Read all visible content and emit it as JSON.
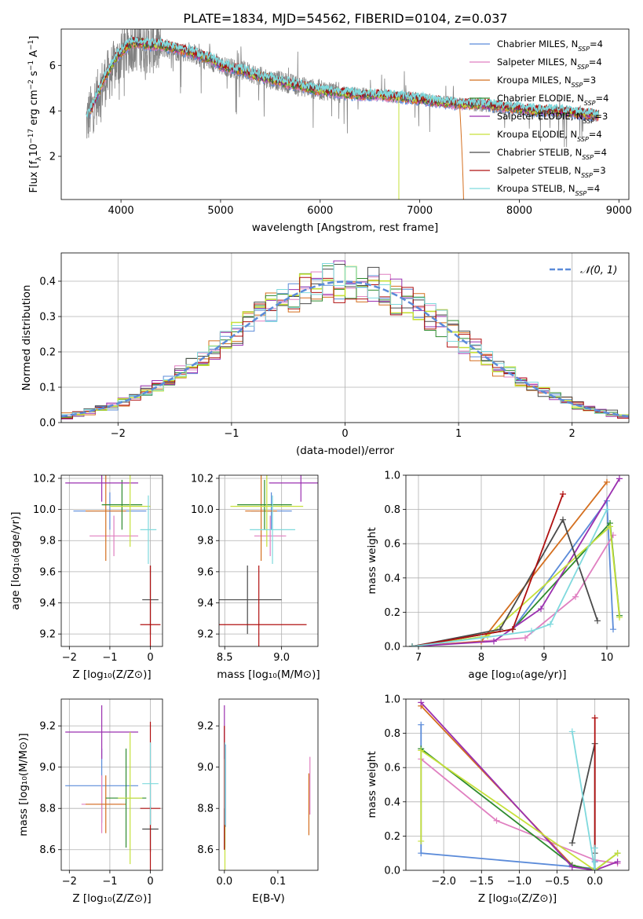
{
  "figure": {
    "title": "PLATE=1834, MJD=54562, FIBERID=0104, z=0.037"
  },
  "colors": [
    "#5b8bd9",
    "#e07fc0",
    "#d46f1f",
    "#2e8b2e",
    "#9b30b0",
    "#c6e03a",
    "#4a4a4a",
    "#b01010",
    "#7fd9dd"
  ],
  "legend": [
    {
      "base": "Chabrier MILES, N",
      "sub": "SSP",
      "tail": "=4"
    },
    {
      "base": "Salpeter MILES, N",
      "sub": "SSP",
      "tail": "=4"
    },
    {
      "base": "Kroupa MILES, N",
      "sub": "SSP",
      "tail": "=3"
    },
    {
      "base": "Chabrier ELODIE, N",
      "sub": "SSP",
      "tail": "=4"
    },
    {
      "base": "Salpeter ELODIE, N",
      "sub": "SSP",
      "tail": "=3"
    },
    {
      "base": "Kroupa ELODIE, N",
      "sub": "SSP",
      "tail": "=4"
    },
    {
      "base": "Chabrier STELIB, N",
      "sub": "SSP",
      "tail": "=4"
    },
    {
      "base": "Salpeter STELIB, N",
      "sub": "SSP",
      "tail": "=3"
    },
    {
      "base": "Kroupa STELIB, N",
      "sub": "SSP",
      "tail": "=4"
    }
  ],
  "chart_data": [
    {
      "id": "spectrum",
      "type": "line",
      "xlabel": "wavelength [Angstrom, rest frame]",
      "ylabel_parts": [
        "Flux [f",
        "λ",
        "10",
        "−17",
        " erg cm",
        "−2",
        " s",
        "−1",
        " A",
        "−1",
        "]"
      ],
      "xlim": [
        3400,
        9100
      ],
      "ylim": [
        0.1,
        7.6
      ],
      "xticks": [
        4000,
        5000,
        6000,
        7000,
        8000,
        9000
      ],
      "yticks": [
        2,
        4,
        6
      ],
      "grid": false,
      "legend_position": "top-right",
      "data_color": "#808080",
      "data_x": [
        3650,
        3700,
        3760,
        3820,
        3880,
        3940,
        4000,
        4100,
        4200,
        4300,
        4400,
        4500,
        4600,
        4700,
        4800,
        4900,
        5000,
        5100,
        5200,
        5300,
        5400,
        5500,
        5600,
        5700,
        5800,
        5900,
        6000,
        6100,
        6200,
        6300,
        6400,
        6500,
        6600,
        6700,
        6800,
        6900,
        7000,
        7100,
        7200,
        7300,
        7400,
        7500,
        7600,
        7700,
        7800,
        7900,
        8000,
        8100,
        8200,
        8300,
        8400,
        8500,
        8600,
        8700,
        8800
      ],
      "data_y": [
        3.5,
        4.0,
        4.6,
        5.2,
        5.6,
        6.0,
        6.4,
        6.9,
        6.9,
        6.8,
        6.8,
        6.7,
        6.6,
        6.6,
        6.3,
        6.2,
        6.0,
        5.9,
        5.8,
        5.7,
        5.5,
        5.4,
        5.3,
        5.2,
        5.1,
        5.0,
        4.9,
        4.9,
        4.8,
        4.8,
        4.8,
        4.7,
        4.7,
        4.6,
        4.6,
        4.6,
        4.5,
        4.5,
        4.4,
        4.4,
        4.3,
        4.3,
        4.2,
        4.2,
        4.1,
        4.1,
        4.1,
        4.0,
        4.0,
        4.0,
        3.9,
        3.9,
        3.9,
        3.8,
        3.8
      ],
      "model_x": [
        3650,
        3700,
        3760,
        3820,
        3880,
        3940,
        4000,
        4100,
        4200,
        4300,
        4400,
        4500,
        4600,
        4700,
        4800,
        4900,
        5000,
        5200,
        5400,
        5600,
        5800,
        6000,
        6200,
        6400,
        6600,
        6800,
        7000,
        7200,
        7400,
        7600,
        7800,
        8000,
        8200,
        8400,
        8600,
        8800
      ],
      "model_y": [
        3.6,
        4.1,
        4.7,
        5.3,
        5.8,
        6.3,
        6.6,
        7.0,
        7.0,
        6.9,
        6.9,
        6.8,
        6.7,
        6.6,
        6.4,
        6.3,
        6.0,
        5.8,
        5.5,
        5.3,
        5.1,
        4.9,
        4.8,
        4.7,
        4.7,
        4.6,
        4.5,
        4.4,
        4.3,
        4.3,
        4.2,
        4.1,
        4.0,
        4.0,
        3.9,
        3.8
      ]
    },
    {
      "id": "residuals",
      "type": "histogram",
      "xlabel": "(data-model)/error",
      "ylabel": "Normed distribution",
      "xlim": [
        -2.5,
        2.5
      ],
      "ylim": [
        0,
        0.48
      ],
      "xticks": [
        -2,
        -1,
        0,
        1,
        2
      ],
      "yticks": [
        0.0,
        0.1,
        0.2,
        0.3,
        0.4
      ],
      "grid": true,
      "legend_position": "top-right",
      "gaussian_label": "𝒩(0, 1)",
      "gaussian_color": "#5b8bd9",
      "bin_width": 0.1
    },
    {
      "id": "age-vs-Z",
      "type": "errorbar",
      "xlabel": "Z [log₁₀(Z/Z⊙)]",
      "ylabel": "age  [log₁₀(age/yr)]",
      "xlim": [
        -2.2,
        0.3
      ],
      "ylim": [
        9.12,
        10.22
      ],
      "xticks": [
        -2,
        -1,
        0
      ],
      "yticks": [
        9.2,
        9.4,
        9.6,
        9.8,
        10.0,
        10.2
      ],
      "grid": true,
      "series": [
        {
          "x": -1.0,
          "xerr": 0.9,
          "y": 9.99,
          "yerr": 0.12
        },
        {
          "x": -0.9,
          "xerr": 0.6,
          "y": 9.83,
          "yerr": 0.13
        },
        {
          "x": -1.1,
          "xerr": 0.5,
          "y": 9.99,
          "yerr": 0.32
        },
        {
          "x": -0.7,
          "xerr": 0.5,
          "y": 10.03,
          "yerr": 0.16
        },
        {
          "x": -1.2,
          "xerr": 0.9,
          "y": 10.17,
          "yerr": 0.12
        },
        {
          "x": -0.5,
          "xerr": 0.5,
          "y": 10.02,
          "yerr": 0.26
        },
        {
          "x": 0.0,
          "xerr": 0.2,
          "y": 9.42,
          "yerr": 0.22
        },
        {
          "x": 0.0,
          "xerr": 0.25,
          "y": 9.26,
          "yerr": 0.38
        },
        {
          "x": -0.05,
          "xerr": 0.2,
          "y": 9.87,
          "yerr": 0.22
        }
      ]
    },
    {
      "id": "age-vs-mass",
      "type": "errorbar",
      "xlabel": "mass [log₁₀(M/M⊙)]",
      "ylabel": "",
      "xlim": [
        8.45,
        9.32
      ],
      "ylim": [
        9.12,
        10.22
      ],
      "xticks": [
        8.5,
        9.0
      ],
      "yticks": [
        9.2,
        9.4,
        9.6,
        9.8,
        10.0,
        10.2
      ],
      "grid": true,
      "series": [
        {
          "x": 8.91,
          "xerr": 0.18,
          "y": 9.99,
          "yerr": 0.12
        },
        {
          "x": 8.9,
          "xerr": 0.14,
          "y": 9.83,
          "yerr": 0.13
        },
        {
          "x": 8.82,
          "xerr": 0.14,
          "y": 9.99,
          "yerr": 0.32
        },
        {
          "x": 8.85,
          "xerr": 0.24,
          "y": 10.03,
          "yerr": 0.16
        },
        {
          "x": 9.17,
          "xerr": 0.28,
          "y": 10.17,
          "yerr": 0.12
        },
        {
          "x": 8.87,
          "xerr": 0.32,
          "y": 10.02,
          "yerr": 0.26
        },
        {
          "x": 8.7,
          "xerr": 0.3,
          "y": 9.42,
          "yerr": 0.22
        },
        {
          "x": 8.8,
          "xerr": 0.42,
          "y": 9.26,
          "yerr": 0.38
        },
        {
          "x": 8.92,
          "xerr": 0.2,
          "y": 9.87,
          "yerr": 0.22
        }
      ]
    },
    {
      "id": "massweight-vs-age",
      "type": "line",
      "xlabel": "age  [log₁₀(age/yr)]",
      "ylabel": "mass weight",
      "xlim": [
        6.8,
        10.35
      ],
      "ylim": [
        0,
        1.0
      ],
      "xticks": [
        7,
        8,
        9,
        10
      ],
      "yticks": [
        0.0,
        0.2,
        0.4,
        0.6,
        0.8,
        1.0
      ],
      "grid": true,
      "series": [
        {
          "x": [
            6.9,
            8.5,
            10.0,
            10.1
          ],
          "y": [
            0.0,
            0.1,
            0.85,
            0.1
          ]
        },
        {
          "x": [
            6.9,
            8.7,
            9.5,
            10.1
          ],
          "y": [
            0.0,
            0.05,
            0.29,
            0.65
          ]
        },
        {
          "x": [
            6.9,
            8.0,
            10.0
          ],
          "y": [
            0.0,
            0.03,
            0.96
          ]
        },
        {
          "x": [
            6.9,
            8.5,
            10.05,
            10.2
          ],
          "y": [
            0.0,
            0.1,
            0.72,
            0.18
          ]
        },
        {
          "x": [
            6.9,
            8.2,
            8.95,
            10.2
          ],
          "y": [
            0.0,
            0.03,
            0.22,
            0.98
          ]
        },
        {
          "x": [
            6.9,
            8.1,
            10.05,
            10.2
          ],
          "y": [
            0.0,
            0.06,
            0.7,
            0.17
          ]
        },
        {
          "x": [
            6.9,
            8.3,
            9.3,
            9.85
          ],
          "y": [
            0.0,
            0.1,
            0.74,
            0.15
          ]
        },
        {
          "x": [
            6.9,
            8.5,
            9.3
          ],
          "y": [
            0.0,
            0.1,
            0.89
          ]
        },
        {
          "x": [
            6.9,
            8.0,
            8.8,
            9.1,
            10.0
          ],
          "y": [
            0.0,
            0.05,
            0.09,
            0.13,
            0.8
          ]
        }
      ]
    },
    {
      "id": "mass-vs-Z",
      "type": "errorbar",
      "xlabel": "Z [log₁₀(Z/Z⊙)]",
      "ylabel": "mass [log₁₀(M/M⊙)]",
      "xlim": [
        -2.2,
        0.3
      ],
      "ylim": [
        8.5,
        9.33
      ],
      "xticks": [
        -2,
        -1,
        0
      ],
      "yticks": [
        8.6,
        8.8,
        9.0,
        9.2
      ],
      "grid": true,
      "series": [
        {
          "x": -1.2,
          "xerr": 0.9,
          "y": 8.91,
          "yerr": 0.18
        },
        {
          "x": -1.2,
          "xerr": 0.5,
          "y": 8.82,
          "yerr": 0.14
        },
        {
          "x": -1.1,
          "xerr": 0.5,
          "y": 8.82,
          "yerr": 0.14
        },
        {
          "x": -0.6,
          "xerr": 0.5,
          "y": 8.85,
          "yerr": 0.24
        },
        {
          "x": -1.2,
          "xerr": 0.9,
          "y": 9.17,
          "yerr": 0.13
        },
        {
          "x": -0.5,
          "xerr": 0.3,
          "y": 8.85,
          "yerr": 0.32
        },
        {
          "x": 0.0,
          "xerr": 0.2,
          "y": 8.7,
          "yerr": 0.11
        },
        {
          "x": 0.0,
          "xerr": 0.25,
          "y": 8.8,
          "yerr": 0.42
        },
        {
          "x": 0.0,
          "xerr": 0.2,
          "y": 8.92,
          "yerr": 0.2
        }
      ]
    },
    {
      "id": "mass-vs-EBV",
      "type": "errorbar",
      "xlabel": "E(B-V)",
      "ylabel": "",
      "xlim": [
        -0.01,
        0.175
      ],
      "ylim": [
        8.5,
        9.33
      ],
      "xticks": [
        0.0,
        0.1
      ],
      "yticks": [
        8.6,
        8.8,
        9.0,
        9.2
      ],
      "grid": false,
      "series": [
        {
          "x": 0.002,
          "y": 8.91,
          "yerr": 0.2
        },
        {
          "x": 0.16,
          "y": 8.91,
          "yerr": 0.14
        },
        {
          "x": 0.158,
          "y": 8.82,
          "yerr": 0.15
        },
        {
          "x": 0.001,
          "y": 8.85,
          "yerr": 0.24
        },
        {
          "x": 0.0,
          "y": 9.17,
          "yerr": 0.13
        },
        {
          "x": 0.001,
          "y": 8.8,
          "yerr": 0.3
        },
        {
          "x": 0.0,
          "y": 8.7,
          "yerr": 0.1
        },
        {
          "x": 0.0,
          "y": 8.9,
          "yerr": 0.3
        },
        {
          "x": 0.001,
          "y": 8.92,
          "yerr": 0.2
        }
      ]
    },
    {
      "id": "massweight-vs-Z",
      "type": "line",
      "xlabel": "Z [log₁₀(Z/Z⊙)]",
      "ylabel": "mass weight",
      "xlim": [
        -2.5,
        0.45
      ],
      "ylim": [
        0,
        1.0
      ],
      "xticks": [
        -2.0,
        -1.5,
        -1.0,
        -0.5,
        0.0
      ],
      "yticks": [
        0.0,
        0.2,
        0.4,
        0.6,
        0.8,
        1.0
      ],
      "grid": true,
      "series": [
        {
          "x": [
            -2.3,
            -2.3,
            0.0,
            0.0
          ],
          "y": [
            0.85,
            0.1,
            0.01,
            0.05
          ]
        },
        {
          "x": [
            -2.3,
            -1.3,
            0.0,
            0.3
          ],
          "y": [
            0.65,
            0.29,
            0.06,
            0.04
          ]
        },
        {
          "x": [
            -2.3,
            -0.3,
            0.0
          ],
          "y": [
            0.96,
            0.03,
            0.0
          ]
        },
        {
          "x": [
            -2.3,
            -0.3,
            0.0,
            0.3
          ],
          "y": [
            0.71,
            0.03,
            0.0,
            0.1
          ]
        },
        {
          "x": [
            -2.3,
            -0.3,
            0.0,
            0.3
          ],
          "y": [
            0.98,
            0.02,
            0.0,
            0.05
          ]
        },
        {
          "x": [
            -2.3,
            -2.3,
            0.0,
            0.3
          ],
          "y": [
            0.17,
            0.7,
            0.0,
            0.1
          ]
        },
        {
          "x": [
            -0.3,
            0.0,
            0.0
          ],
          "y": [
            0.16,
            0.74,
            0.1
          ]
        },
        {
          "x": [
            0.0,
            0.0
          ],
          "y": [
            0.89,
            0.0
          ]
        },
        {
          "x": [
            -0.3,
            0.0,
            0.0
          ],
          "y": [
            0.81,
            0.0,
            0.13
          ]
        }
      ]
    }
  ]
}
